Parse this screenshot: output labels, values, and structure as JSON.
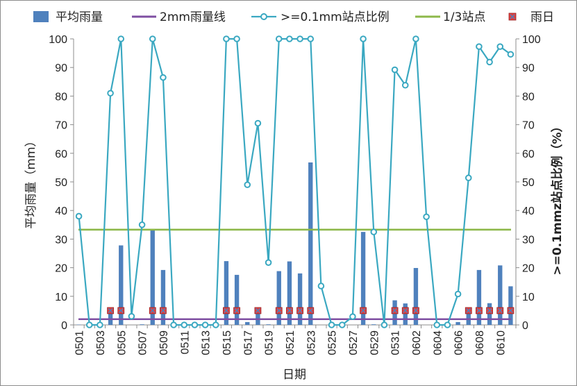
{
  "chart_data": {
    "type": "bar+line",
    "categories": [
      "0501",
      "0502",
      "0503",
      "0504",
      "0505",
      "0506",
      "0507",
      "0508",
      "0509",
      "0510",
      "0511",
      "0512",
      "0513",
      "0514",
      "0515",
      "0516",
      "0517",
      "0518",
      "0519",
      "0520",
      "0521",
      "0522",
      "0523",
      "0524",
      "0525",
      "0526",
      "0527",
      "0528",
      "0529",
      "0530",
      "0531",
      "0601",
      "0602",
      "0603",
      "0604",
      "0605",
      "0606",
      "0607",
      "0608",
      "0609",
      "0610",
      "0611"
    ],
    "x_tick_labels": [
      "0501",
      "0503",
      "0505",
      "0507",
      "0509",
      "0511",
      "0513",
      "0515",
      "0517",
      "0519",
      "0521",
      "0523",
      "0525",
      "0527",
      "0529",
      "0531",
      "0602",
      "0604",
      "0606",
      "0608",
      "0610"
    ],
    "series": [
      {
        "name": "平均雨量",
        "kind": "bar",
        "axis": "left",
        "color": "#4f81bd",
        "values": [
          0.1,
          0,
          0,
          4.2,
          27.8,
          0,
          0.2,
          33.2,
          19.2,
          0,
          0,
          0,
          0,
          0,
          22.3,
          17.5,
          1.0,
          5.3,
          0.2,
          18.8,
          22.2,
          18.0,
          56.8,
          0,
          0,
          0,
          0,
          32.5,
          0.2,
          0,
          8.6,
          7.5,
          19.9,
          0,
          0,
          0,
          1.0,
          5.0,
          19.2,
          7.6,
          20.8,
          13.5
        ]
      },
      {
        "name": "2mm雨量线",
        "kind": "reference-line",
        "axis": "left",
        "color": "#7f4fa2",
        "value": 2
      },
      {
        "name": ">=0.1mm站点比例",
        "kind": "line",
        "axis": "right",
        "color": "#3aa8c1",
        "values": [
          38,
          0,
          0,
          81,
          100,
          3,
          35,
          100,
          86.5,
          0,
          0,
          0,
          0,
          0,
          100,
          100,
          49,
          70.5,
          21.8,
          100,
          100,
          100,
          100,
          13.6,
          0,
          0,
          2.9,
          100,
          32.5,
          0,
          89.2,
          83.8,
          100,
          37.8,
          0,
          0,
          10.8,
          51.4,
          97.3,
          91.9,
          97.3,
          94.6
        ]
      },
      {
        "name": "1/3站点",
        "kind": "reference-line",
        "axis": "right",
        "color": "#8db84a",
        "value": 33.3
      },
      {
        "name": "雨日",
        "kind": "marker",
        "axis": "left",
        "color": "#e04040",
        "marker_value": 5,
        "rain_day_flags": [
          0,
          0,
          0,
          1,
          1,
          0,
          0,
          1,
          1,
          0,
          0,
          0,
          0,
          0,
          1,
          1,
          0,
          1,
          0,
          1,
          1,
          1,
          1,
          0,
          0,
          0,
          0,
          1,
          0,
          0,
          1,
          1,
          1,
          0,
          0,
          0,
          0,
          1,
          1,
          1,
          1,
          1
        ]
      }
    ],
    "xlabel": "日期",
    "ylabel": "平均雨量（mm）",
    "ylabel_right": ">=0.1mmz站点比例（%）",
    "ylim": [
      0,
      100
    ],
    "ylim_right": [
      0,
      100
    ],
    "yticks": [
      0,
      10,
      20,
      30,
      40,
      50,
      60,
      70,
      80,
      90,
      100
    ],
    "legend_position": "top"
  }
}
